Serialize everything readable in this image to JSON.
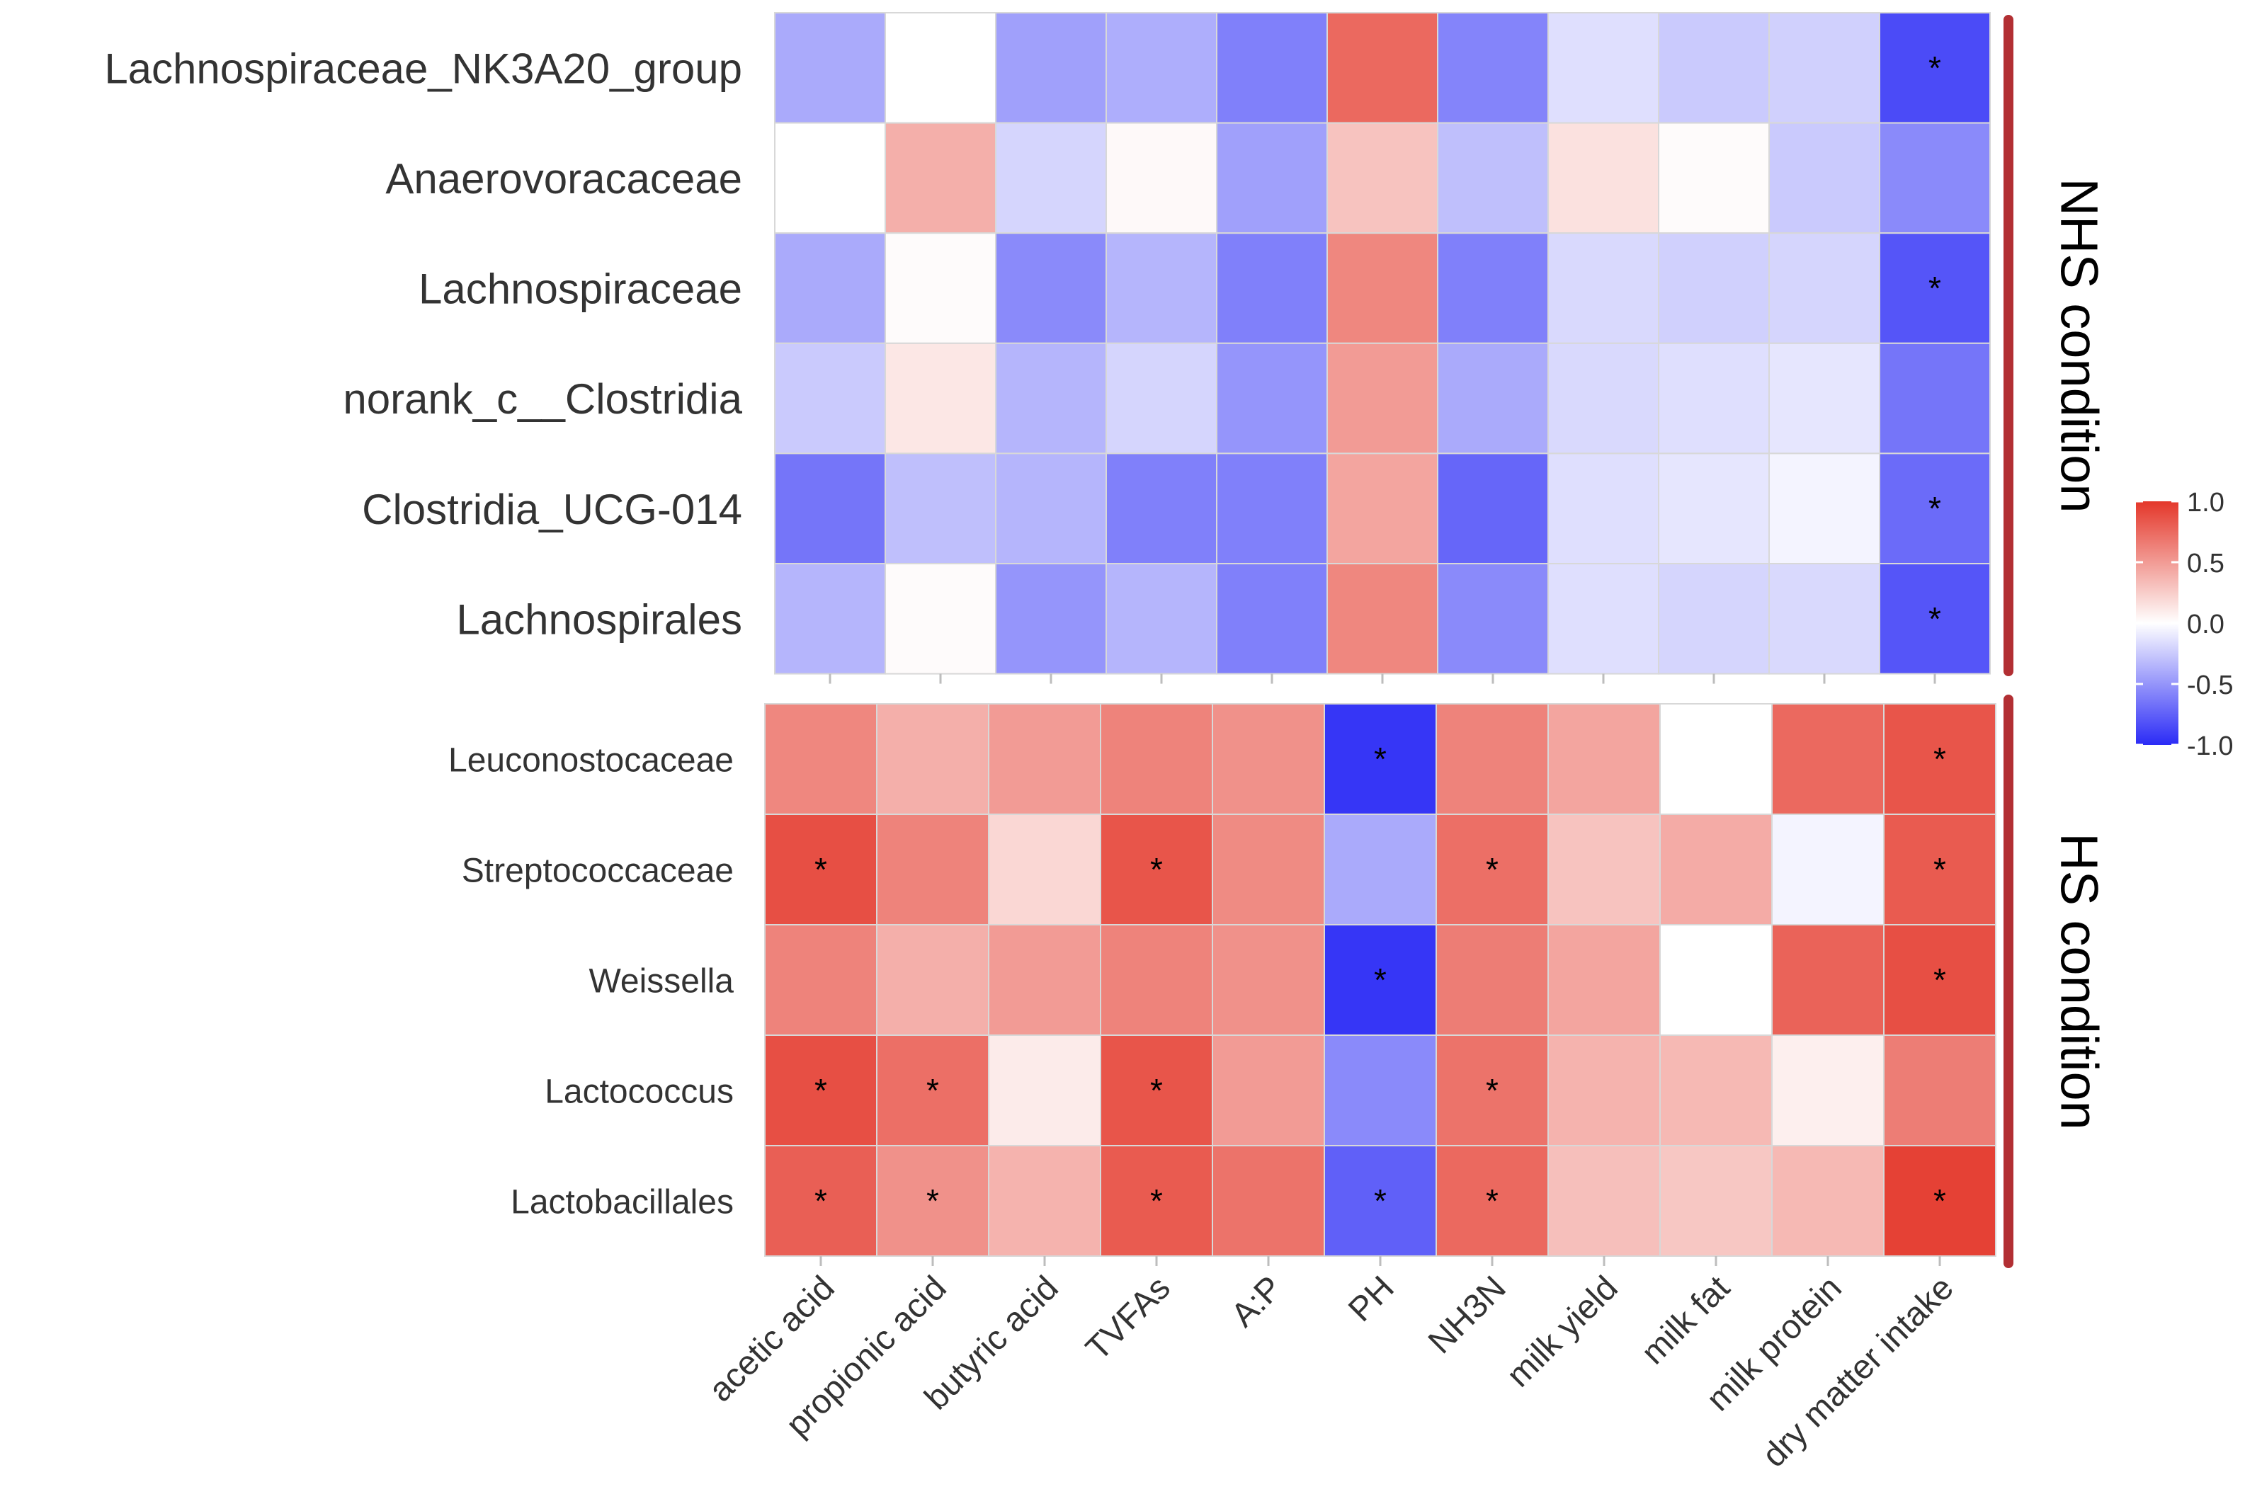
{
  "chart_data": [
    {
      "type": "heatmap",
      "panel": "NHS condition",
      "strip_label": "NHS condition",
      "rows": [
        "Lachnospiraceae_NK3A20_group",
        "Anaerovoracaceae",
        "Lachnospiraceae",
        "norank_c__Clostridia",
        "Clostridia_UCG-014",
        "Lachnospirales"
      ],
      "columns": [
        "acetic acid",
        "propionic acid",
        "butyric acid",
        "TVFAs",
        "A:P",
        "PH",
        "NH3N",
        "milk yield",
        "milk fat",
        "milk protein",
        "dry matter intake"
      ],
      "values": [
        [
          -0.4,
          0.0,
          -0.45,
          -0.38,
          -0.6,
          0.75,
          -0.58,
          -0.15,
          -0.25,
          -0.22,
          -0.85
        ],
        [
          0.0,
          0.4,
          -0.2,
          0.03,
          -0.45,
          0.3,
          -0.3,
          0.15,
          0.02,
          -0.25,
          -0.55
        ],
        [
          -0.4,
          0.02,
          -0.55,
          -0.35,
          -0.6,
          0.6,
          -0.6,
          -0.18,
          -0.22,
          -0.2,
          -0.8
        ],
        [
          -0.25,
          0.12,
          -0.35,
          -0.2,
          -0.5,
          0.5,
          -0.4,
          -0.18,
          -0.15,
          -0.12,
          -0.65
        ],
        [
          -0.65,
          -0.3,
          -0.35,
          -0.6,
          -0.6,
          0.45,
          -0.72,
          -0.15,
          -0.12,
          -0.05,
          -0.7
        ],
        [
          -0.35,
          0.02,
          -0.5,
          -0.35,
          -0.6,
          0.6,
          -0.55,
          -0.15,
          -0.2,
          -0.18,
          -0.8
        ]
      ],
      "significance": [
        [
          "",
          "",
          "",
          "",
          "",
          "",
          "",
          "",
          "",
          "",
          "*"
        ],
        [
          "",
          "",
          "",
          "",
          "",
          "",
          "",
          "",
          "",
          "",
          ""
        ],
        [
          "",
          "",
          "",
          "",
          "",
          "",
          "",
          "",
          "",
          "",
          "*"
        ],
        [
          "",
          "",
          "",
          "",
          "",
          "",
          "",
          "",
          "",
          "",
          ""
        ],
        [
          "",
          "",
          "",
          "",
          "",
          "",
          "",
          "",
          "",
          "",
          "*"
        ],
        [
          "",
          "",
          "",
          "",
          "",
          "",
          "",
          "",
          "",
          "",
          "*"
        ]
      ]
    },
    {
      "type": "heatmap",
      "panel": "HS condition",
      "strip_label": "HS condition",
      "rows": [
        "Leuconostocaceae",
        "Streptococcaceae",
        "Weissella",
        "Lactococcus",
        "Lactobacillales"
      ],
      "columns": [
        "acetic acid",
        "propionic acid",
        "butyric acid",
        "TVFAs",
        "A:P",
        "PH",
        "NH3N",
        "milk yield",
        "milk fat",
        "milk protein",
        "dry matter intake"
      ],
      "values": [
        [
          0.6,
          0.4,
          0.5,
          0.62,
          0.55,
          -0.95,
          0.62,
          0.45,
          0.0,
          0.75,
          0.85
        ],
        [
          0.88,
          0.62,
          0.2,
          0.85,
          0.58,
          -0.4,
          0.72,
          0.3,
          0.42,
          -0.05,
          0.82
        ],
        [
          0.62,
          0.4,
          0.5,
          0.62,
          0.55,
          -0.95,
          0.65,
          0.45,
          0.0,
          0.78,
          0.88
        ],
        [
          0.88,
          0.72,
          0.1,
          0.85,
          0.5,
          -0.55,
          0.7,
          0.38,
          0.35,
          0.08,
          0.65
        ],
        [
          0.8,
          0.55,
          0.38,
          0.82,
          0.7,
          -0.75,
          0.75,
          0.32,
          0.28,
          0.35,
          0.95
        ]
      ],
      "significance": [
        [
          "",
          "",
          "",
          "",
          "",
          "*",
          "",
          "",
          "",
          "",
          "*"
        ],
        [
          "*",
          "",
          "",
          "*",
          "",
          "",
          "*",
          "",
          "",
          "",
          "*"
        ],
        [
          "",
          "",
          "",
          "",
          "",
          "*",
          "",
          "",
          "",
          "",
          "*"
        ],
        [
          "*",
          "*",
          "",
          "*",
          "",
          "",
          "*",
          "",
          "",
          "",
          ""
        ],
        [
          "*",
          "*",
          "",
          "*",
          "",
          "*",
          "*",
          "",
          "",
          "",
          "*"
        ]
      ]
    }
  ],
  "legend": {
    "ticks": [
      "1.0",
      "0.5",
      "0.0",
      "-0.5",
      "-1.0"
    ],
    "tick_values": [
      1.0,
      0.5,
      0.0,
      -0.5,
      -1.0
    ],
    "range": [
      -1.0,
      1.0
    ],
    "colors": {
      "low": "#2b2bf6",
      "mid": "#ffffff",
      "high": "#e4372a"
    },
    "placement": "right"
  },
  "colors": {
    "strip": "#b22f33",
    "grid": "#d8d8d8",
    "text": "#333333"
  }
}
